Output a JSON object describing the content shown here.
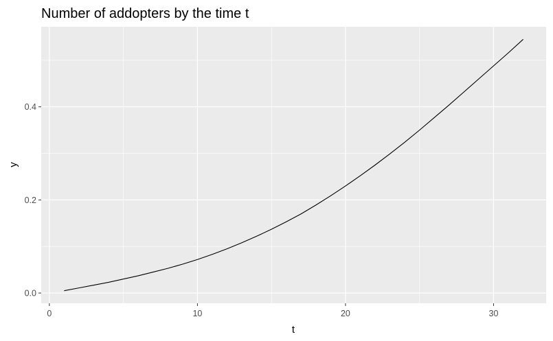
{
  "chart_data": {
    "type": "line",
    "title": "Number of addopters by the time t",
    "xlabel": "t",
    "ylabel": "y",
    "xlim": [
      -0.55,
      33.55
    ],
    "ylim": [
      -0.022,
      0.572
    ],
    "x_ticks": [
      {
        "value": 0,
        "label": "0"
      },
      {
        "value": 10,
        "label": "10"
      },
      {
        "value": 20,
        "label": "20"
      },
      {
        "value": 30,
        "label": "30"
      }
    ],
    "y_ticks": [
      {
        "value": 0.0,
        "label": "0.0"
      },
      {
        "value": 0.2,
        "label": "0.2"
      },
      {
        "value": 0.4,
        "label": "0.4"
      }
    ],
    "x_minor": [
      5,
      15,
      25
    ],
    "y_minor": [
      0.1,
      0.3,
      0.5
    ],
    "grid": true,
    "colors": {
      "panel_background": "#ebebeb",
      "grid": "#ffffff",
      "line": "#000000",
      "tick_text": "#4d4d4d"
    },
    "series": [
      {
        "x": [
          1,
          2,
          3,
          4,
          5,
          6,
          7,
          8,
          9,
          10,
          11,
          12,
          13,
          14,
          15,
          16,
          17,
          18,
          19,
          20,
          21,
          22,
          23,
          24,
          25,
          26,
          27,
          28,
          29,
          30,
          31,
          32
        ],
        "values": [
          0.005,
          0.011,
          0.017,
          0.023,
          0.03,
          0.037,
          0.045,
          0.053,
          0.062,
          0.072,
          0.083,
          0.095,
          0.108,
          0.122,
          0.137,
          0.153,
          0.17,
          0.189,
          0.209,
          0.23,
          0.252,
          0.275,
          0.299,
          0.324,
          0.35,
          0.377,
          0.404,
          0.432,
          0.46,
          0.488,
          0.516,
          0.545
        ]
      }
    ]
  }
}
